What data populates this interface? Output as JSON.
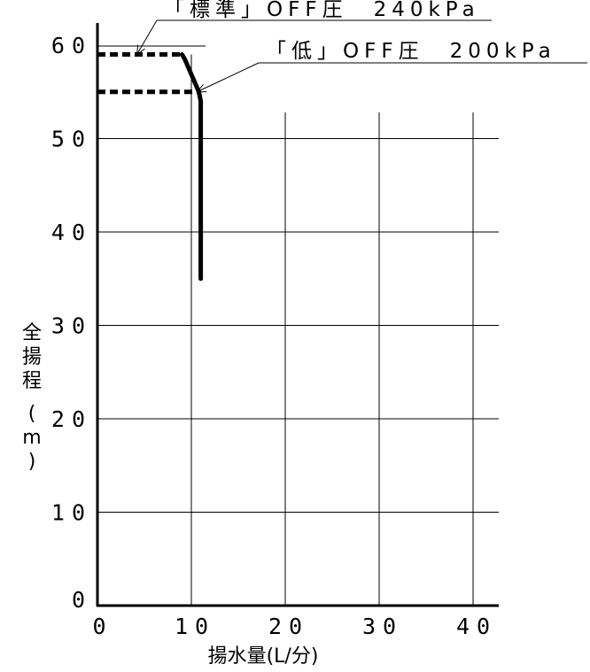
{
  "chart_data": {
    "type": "line",
    "title": "",
    "xlabel": "揚水量(L/分)",
    "ylabel": "全揚程(m)",
    "xlim": [
      0,
      42
    ],
    "ylim": [
      0,
      62
    ],
    "x_ticks": [
      "0",
      "10",
      "20",
      "30",
      "40"
    ],
    "y_ticks": [
      "0",
      "10",
      "20",
      "30",
      "40",
      "50",
      "60"
    ],
    "grid": true,
    "series": [
      {
        "style": "dashed",
        "points": [
          [
            0,
            59
          ],
          [
            9,
            59
          ]
        ]
      },
      {
        "style": "dashed",
        "points": [
          [
            0,
            55
          ],
          [
            10.6,
            55
          ]
        ]
      },
      {
        "style": "solid",
        "points": [
          [
            9,
            59
          ],
          [
            9.3,
            58.5
          ],
          [
            10.8,
            55
          ],
          [
            11,
            54
          ],
          [
            11,
            35
          ]
        ]
      }
    ],
    "annotations": [
      {
        "text": "「標準」OFF圧　240kPa",
        "target": [
          4.2,
          59
        ]
      },
      {
        "text": "「低」OFF圧　200kPa",
        "target": [
          10.6,
          55
        ]
      }
    ]
  }
}
